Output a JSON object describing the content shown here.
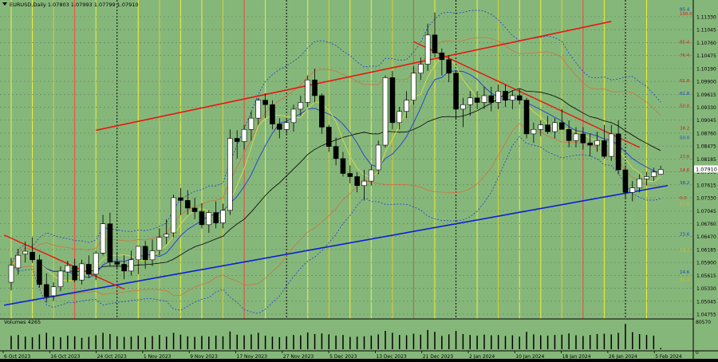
{
  "header": {
    "symbol_text": "EURUSD,Daily  1.07803 1.07993 1.07799 1.07910"
  },
  "colors": {
    "background": "#86b77a",
    "bull": "#ffffff",
    "bear": "#000000",
    "grid": "#5d7f5d",
    "support_line": "#0a1fd6",
    "resistance_line": "#e8150f",
    "price_label_bg": "#ffffff",
    "current_price_bg": "#ffffff"
  },
  "chart_data": {
    "type": "candlestick",
    "symbol": "EURUSD",
    "timeframe": "Daily",
    "ohlc_last": {
      "open": 1.07803,
      "high": 1.07993,
      "low": 1.07799,
      "close": 1.0791
    },
    "current_price_label": "1.07910",
    "price_axis": [
      "1.11330",
      "1.11045",
      "1.10760",
      "1.10475",
      "1.10190",
      "1.09900",
      "1.09615",
      "1.09330",
      "1.09045",
      "1.08760",
      "1.08475",
      "1.08185",
      "1.07900",
      "1.07615",
      "1.07330",
      "1.07045",
      "1.06760",
      "1.06470",
      "1.06185",
      "1.05900",
      "1.05615",
      "1.05330",
      "1.05045",
      "1.04755"
    ],
    "date_axis": [
      "6 Oct 2023",
      "16 Oct 2023",
      "24 Oct 2023",
      "1 Nov 2023",
      "9 Nov 2023",
      "17 Nov 2023",
      "27 Nov 2023",
      "5 Dec 2023",
      "13 Dec 2023",
      "21 Dec 2023",
      "2 Jan 2024",
      "10 Jan 2024",
      "18 Jan 2024",
      "26 Jan 2024",
      "5 Feb 2024"
    ],
    "ylim": [
      1.0462,
      1.115
    ],
    "fib_labels": [
      {
        "text": "85.4",
        "price": 1.1147,
        "color": "#1b3cd8"
      },
      {
        "text": "100.0",
        "price": 1.1138,
        "color": "#d81b1b"
      },
      {
        "text": "85.4",
        "price": 1.1075,
        "color": "#d81b1b"
      },
      {
        "text": "76.4",
        "price": 1.1045,
        "color": "#d81b1b"
      },
      {
        "text": "61.8",
        "price": 1.0989,
        "color": "#d81b1b"
      },
      {
        "text": "61.8",
        "price": 1.096,
        "color": "#1b3cd8"
      },
      {
        "text": "50.0",
        "price": 1.0933,
        "color": "#d81b1b"
      },
      {
        "text": "38.2",
        "price": 1.0883,
        "color": "#d81b1b"
      },
      {
        "text": "50.0",
        "price": 1.0862,
        "color": "#1b3cd8"
      },
      {
        "text": "23.6",
        "price": 1.082,
        "color": "#d81b1b"
      },
      {
        "text": "14.6",
        "price": 1.079,
        "color": "#d81b1b"
      },
      {
        "text": "38.2",
        "price": 1.0762,
        "color": "#1b3cd8"
      },
      {
        "text": "0.0",
        "price": 1.0728,
        "color": "#d81b1b"
      },
      {
        "text": "61.8",
        "price": 1.0715,
        "color": "#d8b81b"
      },
      {
        "text": "23.6",
        "price": 1.0647,
        "color": "#1b3cd8"
      },
      {
        "text": "76.4",
        "price": 1.0612,
        "color": "#d8b81b"
      },
      {
        "text": "14.6",
        "price": 1.0563,
        "color": "#1b3cd8"
      },
      {
        "text": "85.4",
        "price": 1.0545,
        "color": "#d8b81b"
      }
    ],
    "candles": [
      {
        "o": 1.054,
        "h": 1.0594,
        "l": 1.0522,
        "c": 1.0578
      },
      {
        "o": 1.0572,
        "h": 1.0614,
        "l": 1.0557,
        "c": 1.06
      },
      {
        "o": 1.0603,
        "h": 1.0631,
        "l": 1.0584,
        "c": 1.0609
      },
      {
        "o": 1.0607,
        "h": 1.064,
        "l": 1.0583,
        "c": 1.059
      },
      {
        "o": 1.059,
        "h": 1.0601,
        "l": 1.0528,
        "c": 1.0535
      },
      {
        "o": 1.0535,
        "h": 1.056,
        "l": 1.0495,
        "c": 1.0508
      },
      {
        "o": 1.051,
        "h": 1.054,
        "l": 1.0499,
        "c": 1.053
      },
      {
        "o": 1.053,
        "h": 1.0575,
        "l": 1.052,
        "c": 1.0565
      },
      {
        "o": 1.0563,
        "h": 1.0588,
        "l": 1.054,
        "c": 1.0577
      },
      {
        "o": 1.0576,
        "h": 1.0592,
        "l": 1.054,
        "c": 1.0545
      },
      {
        "o": 1.0545,
        "h": 1.059,
        "l": 1.0535,
        "c": 1.0581
      },
      {
        "o": 1.058,
        "h": 1.06,
        "l": 1.055,
        "c": 1.0558
      },
      {
        "o": 1.0558,
        "h": 1.061,
        "l": 1.0545,
        "c": 1.0605
      },
      {
        "o": 1.0605,
        "h": 1.069,
        "l": 1.06,
        "c": 1.067
      },
      {
        "o": 1.067,
        "h": 1.0695,
        "l": 1.0575,
        "c": 1.0585
      },
      {
        "o": 1.0585,
        "h": 1.0606,
        "l": 1.057,
        "c": 1.058
      },
      {
        "o": 1.058,
        "h": 1.06,
        "l": 1.0547,
        "c": 1.0565
      },
      {
        "o": 1.0565,
        "h": 1.061,
        "l": 1.0555,
        "c": 1.059
      },
      {
        "o": 1.059,
        "h": 1.0621,
        "l": 1.0558,
        "c": 1.062
      },
      {
        "o": 1.062,
        "h": 1.0632,
        "l": 1.057,
        "c": 1.059
      },
      {
        "o": 1.059,
        "h": 1.0635,
        "l": 1.0576,
        "c": 1.061
      },
      {
        "o": 1.0611,
        "h": 1.066,
        "l": 1.06,
        "c": 1.064
      },
      {
        "o": 1.0641,
        "h": 1.068,
        "l": 1.0625,
        "c": 1.0647
      },
      {
        "o": 1.065,
        "h": 1.0735,
        "l": 1.064,
        "c": 1.0728
      },
      {
        "o": 1.0728,
        "h": 1.075,
        "l": 1.069,
        "c": 1.0722
      },
      {
        "o": 1.0722,
        "h": 1.0745,
        "l": 1.069,
        "c": 1.0705
      },
      {
        "o": 1.0705,
        "h": 1.0728,
        "l": 1.068,
        "c": 1.0697
      },
      {
        "o": 1.0697,
        "h": 1.0716,
        "l": 1.066,
        "c": 1.0668
      },
      {
        "o": 1.0668,
        "h": 1.07,
        "l": 1.065,
        "c": 1.0695
      },
      {
        "o": 1.0695,
        "h": 1.072,
        "l": 1.066,
        "c": 1.0672
      },
      {
        "o": 1.0672,
        "h": 1.0715,
        "l": 1.066,
        "c": 1.07
      },
      {
        "o": 1.07,
        "h": 1.088,
        "l": 1.069,
        "c": 1.086
      },
      {
        "o": 1.086,
        "h": 1.0878,
        "l": 1.0815,
        "c": 1.0853
      },
      {
        "o": 1.0853,
        "h": 1.089,
        "l": 1.0835,
        "c": 1.088
      },
      {
        "o": 1.088,
        "h": 1.092,
        "l": 1.0855,
        "c": 1.0905
      },
      {
        "o": 1.0905,
        "h": 1.095,
        "l": 1.089,
        "c": 1.0945
      },
      {
        "o": 1.0945,
        "h": 1.096,
        "l": 1.0905,
        "c": 1.0935
      },
      {
        "o": 1.0935,
        "h": 1.0945,
        "l": 1.088,
        "c": 1.0892
      },
      {
        "o": 1.0892,
        "h": 1.0905,
        "l": 1.086,
        "c": 1.088
      },
      {
        "o": 1.088,
        "h": 1.0905,
        "l": 1.087,
        "c": 1.0895
      },
      {
        "o": 1.0895,
        "h": 1.0935,
        "l": 1.0875,
        "c": 1.0925
      },
      {
        "o": 1.0925,
        "h": 1.0955,
        "l": 1.091,
        "c": 1.094
      },
      {
        "o": 1.094,
        "h": 1.1,
        "l": 1.093,
        "c": 1.099
      },
      {
        "o": 1.099,
        "h": 1.1015,
        "l": 1.094,
        "c": 1.0955
      },
      {
        "o": 1.0955,
        "h": 1.096,
        "l": 1.087,
        "c": 1.0885
      },
      {
        "o": 1.0885,
        "h": 1.089,
        "l": 1.083,
        "c": 1.0842
      },
      {
        "o": 1.0842,
        "h": 1.0862,
        "l": 1.08,
        "c": 1.0815
      },
      {
        "o": 1.0815,
        "h": 1.083,
        "l": 1.0775,
        "c": 1.0782
      },
      {
        "o": 1.0782,
        "h": 1.08,
        "l": 1.076,
        "c": 1.0775
      },
      {
        "o": 1.0775,
        "h": 1.0785,
        "l": 1.074,
        "c": 1.0755
      },
      {
        "o": 1.0755,
        "h": 1.079,
        "l": 1.0722,
        "c": 1.0765
      },
      {
        "o": 1.0765,
        "h": 1.08,
        "l": 1.0755,
        "c": 1.079
      },
      {
        "o": 1.079,
        "h": 1.0855,
        "l": 1.078,
        "c": 1.0845
      },
      {
        "o": 1.0845,
        "h": 1.1,
        "l": 1.084,
        "c": 1.0995
      },
      {
        "o": 1.0995,
        "h": 1.101,
        "l": 1.088,
        "c": 1.0895
      },
      {
        "o": 1.0895,
        "h": 1.093,
        "l": 1.088,
        "c": 1.092
      },
      {
        "o": 1.092,
        "h": 1.0965,
        "l": 1.0905,
        "c": 1.0945
      },
      {
        "o": 1.0945,
        "h": 1.102,
        "l": 1.0935,
        "c": 1.1005
      },
      {
        "o": 1.1005,
        "h": 1.104,
        "l": 1.099,
        "c": 1.1025
      },
      {
        "o": 1.1025,
        "h": 1.1115,
        "l": 1.101,
        "c": 1.109
      },
      {
        "o": 1.109,
        "h": 1.114,
        "l": 1.104,
        "c": 1.105
      },
      {
        "o": 1.105,
        "h": 1.106,
        "l": 1.1,
        "c": 1.1035
      },
      {
        "o": 1.1035,
        "h": 1.1045,
        "l": 1.0985,
        "c": 1.1005
      },
      {
        "o": 1.1005,
        "h": 1.101,
        "l": 1.0905,
        "c": 1.0925
      },
      {
        "o": 1.0925,
        "h": 1.095,
        "l": 1.0885,
        "c": 1.0935
      },
      {
        "o": 1.0935,
        "h": 1.0965,
        "l": 1.091,
        "c": 1.095
      },
      {
        "o": 1.095,
        "h": 1.0965,
        "l": 1.0925,
        "c": 1.094
      },
      {
        "o": 1.094,
        "h": 1.0975,
        "l": 1.0925,
        "c": 1.0955
      },
      {
        "o": 1.0955,
        "h": 1.0975,
        "l": 1.092,
        "c": 1.094
      },
      {
        "o": 1.094,
        "h": 1.098,
        "l": 1.0925,
        "c": 1.0965
      },
      {
        "o": 1.0965,
        "h": 1.098,
        "l": 1.093,
        "c": 1.0945
      },
      {
        "o": 1.0945,
        "h": 1.0965,
        "l": 1.0925,
        "c": 1.0955
      },
      {
        "o": 1.0955,
        "h": 1.097,
        "l": 1.0935,
        "c": 1.0945
      },
      {
        "o": 1.0945,
        "h": 1.095,
        "l": 1.086,
        "c": 1.087
      },
      {
        "o": 1.087,
        "h": 1.0895,
        "l": 1.085,
        "c": 1.088
      },
      {
        "o": 1.088,
        "h": 1.09,
        "l": 1.0865,
        "c": 1.089
      },
      {
        "o": 1.089,
        "h": 1.091,
        "l": 1.087,
        "c": 1.0875
      },
      {
        "o": 1.0875,
        "h": 1.0905,
        "l": 1.086,
        "c": 1.0895
      },
      {
        "o": 1.0895,
        "h": 1.0925,
        "l": 1.088,
        "c": 1.088
      },
      {
        "o": 1.088,
        "h": 1.09,
        "l": 1.084,
        "c": 1.0855
      },
      {
        "o": 1.0855,
        "h": 1.0885,
        "l": 1.084,
        "c": 1.087
      },
      {
        "o": 1.087,
        "h": 1.0885,
        "l": 1.0835,
        "c": 1.085
      },
      {
        "o": 1.085,
        "h": 1.087,
        "l": 1.082,
        "c": 1.0845
      },
      {
        "o": 1.0845,
        "h": 1.0875,
        "l": 1.083,
        "c": 1.0855
      },
      {
        "o": 1.0855,
        "h": 1.089,
        "l": 1.0815,
        "c": 1.082
      },
      {
        "o": 1.082,
        "h": 1.089,
        "l": 1.081,
        "c": 1.087
      },
      {
        "o": 1.087,
        "h": 1.09,
        "l": 1.078,
        "c": 1.079
      },
      {
        "o": 1.079,
        "h": 1.08,
        "l": 1.0725,
        "c": 1.074
      },
      {
        "o": 1.074,
        "h": 1.0765,
        "l": 1.072,
        "c": 1.075
      },
      {
        "o": 1.075,
        "h": 1.078,
        "l": 1.074,
        "c": 1.077
      },
      {
        "o": 1.077,
        "h": 1.0785,
        "l": 1.0755,
        "c": 1.0775
      },
      {
        "o": 1.0775,
        "h": 1.0795,
        "l": 1.0765,
        "c": 1.0785
      },
      {
        "o": 1.078,
        "h": 1.0799,
        "l": 1.0779,
        "c": 1.0791
      }
    ],
    "support_line": {
      "from": {
        "i": -1,
        "p": 1.0489
      },
      "to": {
        "i": 93,
        "p": 1.0755
      }
    },
    "resistance_line": {
      "from": {
        "i": 12,
        "p": 1.0878
      },
      "to": {
        "i": 85,
        "p": 1.112
      }
    },
    "downtrend_line": {
      "from": {
        "i": 57,
        "p": 1.1075
      },
      "to": {
        "i": 89,
        "p": 1.084
      }
    },
    "early_downtrend_line": {
      "from": {
        "i": -1,
        "p": 1.0645
      },
      "to": {
        "i": 16,
        "p": 1.0525
      }
    },
    "volume": {
      "label": "Volumes 4265",
      "axis_max_label": "80570",
      "axis_min_label": "0",
      "max": 80570,
      "values": [
        42000,
        45000,
        40000,
        38000,
        47000,
        52000,
        40000,
        38000,
        43000,
        41000,
        36000,
        39000,
        44000,
        52000,
        48000,
        41000,
        39000,
        40000,
        43000,
        38000,
        42000,
        45000,
        40000,
        52000,
        46000,
        41000,
        39000,
        42000,
        40000,
        43000,
        41000,
        56000,
        46000,
        44000,
        47000,
        52000,
        43000,
        40000,
        38000,
        41000,
        45000,
        44000,
        53000,
        48000,
        50000,
        47000,
        43000,
        45000,
        39000,
        40000,
        41000,
        43000,
        47000,
        58000,
        52000,
        45000,
        44000,
        49000,
        46000,
        61000,
        55000,
        42000,
        47000,
        58000,
        48000,
        45000,
        43000,
        46000,
        44000,
        45000,
        42000,
        44000,
        40000,
        55000,
        47000,
        44000,
        43000,
        45000,
        46000,
        50000,
        44000,
        42000,
        45000,
        48000,
        49000,
        47000,
        52000,
        80000,
        54000,
        48000,
        45000,
        43000,
        4265
      ]
    }
  }
}
